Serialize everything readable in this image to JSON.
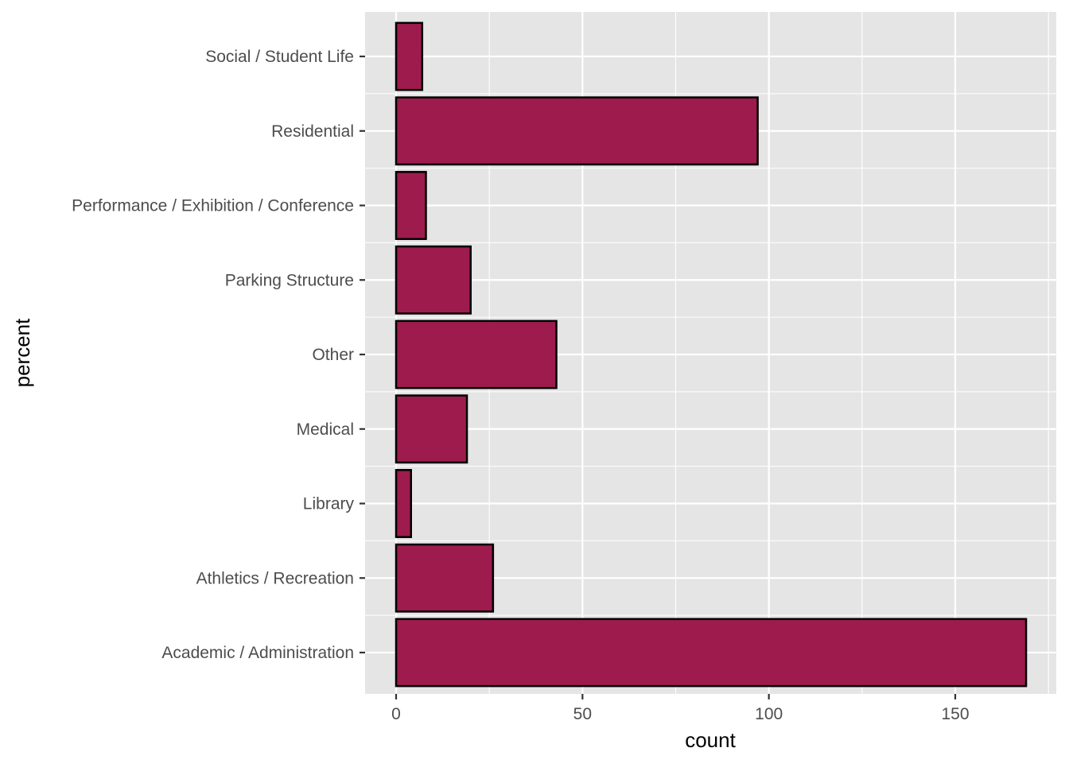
{
  "chart_data": {
    "type": "bar",
    "orientation": "horizontal",
    "title": "",
    "xlabel": "count",
    "ylabel": "percent",
    "xlim": [
      0,
      175
    ],
    "x_ticks": [
      0,
      50,
      100,
      150
    ],
    "grid": true,
    "legend": null,
    "categories": [
      "Academic / Administration",
      "Athletics / Recreation",
      "Library",
      "Medical",
      "Other",
      "Parking Structure",
      "Performance / Exhibition / Conference",
      "Residential",
      "Social / Student Life"
    ],
    "values": [
      169,
      26,
      4,
      19,
      43,
      20,
      8,
      97,
      7
    ]
  },
  "style": {
    "panel_bg": "#e5e5e5",
    "grid_color": "#ffffff",
    "bar_fill": "#9e1b4d",
    "bar_stroke": "#000000",
    "tick_label_color": "#4d4d4d"
  }
}
